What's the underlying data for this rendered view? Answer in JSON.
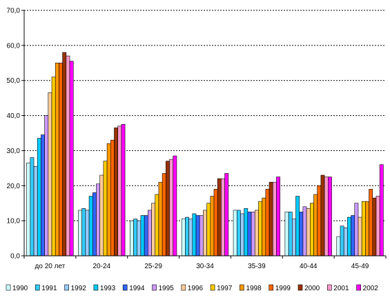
{
  "chart_data": {
    "type": "bar",
    "categories": [
      "до 20 лет",
      "20-24",
      "25-29",
      "30-34",
      "35-39",
      "40-44",
      "45-49"
    ],
    "y_ticks": [
      "0,0",
      "10,0",
      "20,0",
      "30,0",
      "40,0",
      "50,0",
      "60,0",
      "70,0"
    ],
    "ylim": [
      0,
      70
    ],
    "grid": true,
    "legend_position": "bottom",
    "series": [
      {
        "name": "1990",
        "color": "#ccffff",
        "values": [
          26.5,
          13.0,
          10.0,
          10.5,
          13.0,
          12.5,
          5.5
        ]
      },
      {
        "name": "1991",
        "color": "#33ccff",
        "values": [
          28.0,
          13.5,
          10.5,
          11.0,
          13.0,
          12.5,
          8.5
        ]
      },
      {
        "name": "1992",
        "color": "#99ccff",
        "values": [
          25.5,
          13.0,
          10.0,
          10.5,
          12.0,
          10.5,
          8.0
        ]
      },
      {
        "name": "1993",
        "color": "#00ccff",
        "values": [
          33.5,
          17.0,
          11.5,
          12.0,
          13.5,
          17.0,
          11.0
        ]
      },
      {
        "name": "1994",
        "color": "#3366ff",
        "values": [
          34.5,
          18.0,
          11.5,
          11.5,
          12.5,
          12.5,
          11.5
        ]
      },
      {
        "name": "1995",
        "color": "#cc99ff",
        "values": [
          40.0,
          20.5,
          13.0,
          11.5,
          12.5,
          14.0,
          15.0
        ]
      },
      {
        "name": "1996",
        "color": "#ffcc99",
        "values": [
          46.5,
          23.0,
          15.0,
          13.0,
          13.0,
          13.5,
          11.0
        ]
      },
      {
        "name": "1997",
        "color": "#ffcc00",
        "values": [
          51.0,
          27.0,
          17.5,
          15.0,
          15.5,
          15.0,
          15.5
        ]
      },
      {
        "name": "1998",
        "color": "#ff9900",
        "values": [
          55.0,
          32.0,
          21.0,
          17.0,
          16.5,
          17.5,
          15.5
        ]
      },
      {
        "name": "1999",
        "color": "#ff6600",
        "values": [
          55.0,
          33.0,
          23.5,
          19.0,
          19.0,
          20.0,
          19.0
        ]
      },
      {
        "name": "2000",
        "color": "#993300",
        "values": [
          58.0,
          36.5,
          27.0,
          22.0,
          21.0,
          23.0,
          16.5
        ]
      },
      {
        "name": "2001",
        "color": "#ff99cc",
        "values": [
          57.0,
          37.0,
          27.5,
          22.0,
          21.0,
          22.5,
          17.0
        ]
      },
      {
        "name": "2002",
        "color": "#ff00ff",
        "values": [
          55.5,
          37.5,
          28.5,
          23.5,
          22.5,
          22.5,
          26.0
        ]
      }
    ]
  }
}
